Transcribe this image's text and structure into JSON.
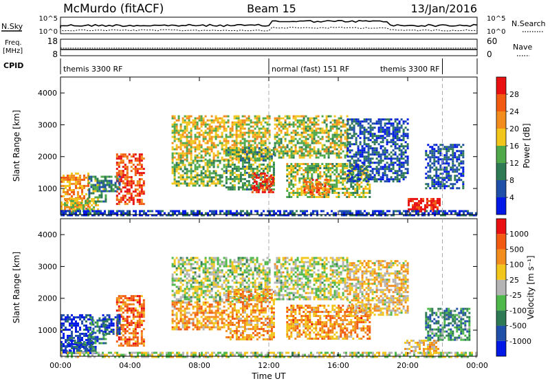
{
  "header": {
    "station": "McMurdo (fitACF)",
    "beam": "Beam 15",
    "date": "13/Jan/2016"
  },
  "top_panel": {
    "left_label": "N.Sky",
    "right_label": "N.Search",
    "left_ticks": [
      "10^5",
      "10^0"
    ],
    "right_ticks": [
      "10^5",
      "10^0"
    ]
  },
  "freq_panel": {
    "left_label_1": "Freq.",
    "left_label_2": "[MHz]",
    "right_label": "Nave",
    "left_ticks": [
      "18",
      "8"
    ],
    "right_ticks": [
      "60",
      "0"
    ]
  },
  "cpid": {
    "label": "CPID",
    "segments": [
      {
        "name": "themis 3300 RF",
        "start_hour": 0,
        "end_hour": 12
      },
      {
        "name": "normal (fast) 151 RF",
        "start_hour": 12,
        "end_hour": 22
      },
      {
        "name": "themis 3300 RF",
        "start_hour": 22,
        "end_hour": 24
      }
    ]
  },
  "chart_data": [
    {
      "type": "heatmap",
      "title": "",
      "xlabel": "Time UT",
      "ylabel": "Slant Range [km]",
      "xlim": [
        0,
        24
      ],
      "ylim": [
        180,
        4500
      ],
      "x_ticks": [
        "00:00",
        "04:00",
        "08:00",
        "12:00",
        "16:00",
        "20:00",
        "00:00"
      ],
      "y_ticks": [
        "1000",
        "2000",
        "3000",
        "4000"
      ],
      "colorbar": {
        "label": "Power [dB]",
        "ticks": [
          "4",
          "8",
          "12",
          "16",
          "20",
          "24",
          "28"
        ],
        "colors": [
          "#0018e6",
          "#1f4fa8",
          "#2e7a55",
          "#4fa84a",
          "#f2c61c",
          "#f28c1c",
          "#f25a12",
          "#e81010"
        ]
      },
      "echo_regions": [
        {
          "x": [
            0.0,
            1.6
          ],
          "y": [
            300,
            1500
          ],
          "level": 0.7
        },
        {
          "x": [
            0.2,
            2.2
          ],
          "y": [
            250,
            700
          ],
          "level": 0.55
        },
        {
          "x": [
            1.6,
            2.6
          ],
          "y": [
            600,
            1400
          ],
          "level": 0.35
        },
        {
          "x": [
            3.2,
            4.8
          ],
          "y": [
            500,
            2100
          ],
          "level": 0.85
        },
        {
          "x": [
            2.4,
            3.4
          ],
          "y": [
            900,
            1400
          ],
          "level": 0.3
        },
        {
          "x": [
            6.4,
            12.0
          ],
          "y": [
            1900,
            3300
          ],
          "level": 0.55
        },
        {
          "x": [
            6.4,
            9.4
          ],
          "y": [
            1100,
            1900
          ],
          "level": 0.45
        },
        {
          "x": [
            9.5,
            12.3
          ],
          "y": [
            1000,
            2300
          ],
          "level": 0.4
        },
        {
          "x": [
            11.0,
            12.3
          ],
          "y": [
            900,
            1500
          ],
          "level": 0.9
        },
        {
          "x": [
            12.3,
            16.5
          ],
          "y": [
            2000,
            3300
          ],
          "level": 0.5
        },
        {
          "x": [
            13.0,
            17.8
          ],
          "y": [
            700,
            1800
          ],
          "level": 0.5
        },
        {
          "x": [
            14.0,
            15.5
          ],
          "y": [
            800,
            1300
          ],
          "level": 0.75
        },
        {
          "x": [
            16.5,
            20.0
          ],
          "y": [
            1200,
            3200
          ],
          "level": 0.2
        },
        {
          "x": [
            20.0,
            21.8
          ],
          "y": [
            250,
            700
          ],
          "level": 0.95
        },
        {
          "x": [
            21.0,
            23.2
          ],
          "y": [
            1000,
            2400
          ],
          "level": 0.2
        },
        {
          "x": [
            0.0,
            24.0
          ],
          "y": [
            180,
            320
          ],
          "level": 0.15
        }
      ]
    },
    {
      "type": "heatmap",
      "title": "",
      "xlabel": "Time UT",
      "ylabel": "Slant Range [km]",
      "xlim": [
        0,
        24
      ],
      "ylim": [
        180,
        4500
      ],
      "x_ticks": [
        "00:00",
        "04:00",
        "08:00",
        "12:00",
        "16:00",
        "20:00",
        "00:00"
      ],
      "y_ticks": [
        "1000",
        "2000",
        "3000",
        "4000"
      ],
      "colorbar": {
        "label": "Velocity [m s⁻¹]",
        "ticks": [
          "1000",
          "500",
          "100",
          "25",
          "-25",
          "-100",
          "-500",
          "-1000"
        ],
        "colors": [
          "#0018e6",
          "#1f4fa8",
          "#2e7a55",
          "#4fb84a",
          "#b4b4b4",
          "#f2c61c",
          "#f28c1c",
          "#f25a12",
          "#e81010"
        ]
      },
      "echo_regions": [
        {
          "x": [
            0.0,
            1.8
          ],
          "y": [
            300,
            1500
          ],
          "level": 0.1
        },
        {
          "x": [
            0.3,
            2.0
          ],
          "y": [
            250,
            700
          ],
          "level": 0.2
        },
        {
          "x": [
            1.6,
            2.6
          ],
          "y": [
            600,
            1400
          ],
          "level": 0.25
        },
        {
          "x": [
            3.2,
            4.8
          ],
          "y": [
            500,
            2100
          ],
          "level": 0.8
        },
        {
          "x": [
            2.4,
            3.4
          ],
          "y": [
            900,
            1500
          ],
          "level": 0.15
        },
        {
          "x": [
            6.4,
            12.0
          ],
          "y": [
            1900,
            3300
          ],
          "level": 0.48
        },
        {
          "x": [
            6.4,
            9.4
          ],
          "y": [
            1000,
            1900
          ],
          "level": 0.7
        },
        {
          "x": [
            9.5,
            12.3
          ],
          "y": [
            700,
            2300
          ],
          "level": 0.7
        },
        {
          "x": [
            12.3,
            16.5
          ],
          "y": [
            2000,
            3300
          ],
          "level": 0.5
        },
        {
          "x": [
            13.0,
            17.8
          ],
          "y": [
            700,
            1800
          ],
          "level": 0.72
        },
        {
          "x": [
            16.5,
            20.0
          ],
          "y": [
            1500,
            3200
          ],
          "level": 0.6
        },
        {
          "x": [
            19.8,
            21.8
          ],
          "y": [
            250,
            700
          ],
          "level": 0.62
        },
        {
          "x": [
            21.0,
            23.5
          ],
          "y": [
            700,
            1700
          ],
          "level": 0.3
        },
        {
          "x": [
            0.0,
            24.0
          ],
          "y": [
            180,
            320
          ],
          "level": 0.5
        }
      ]
    }
  ]
}
